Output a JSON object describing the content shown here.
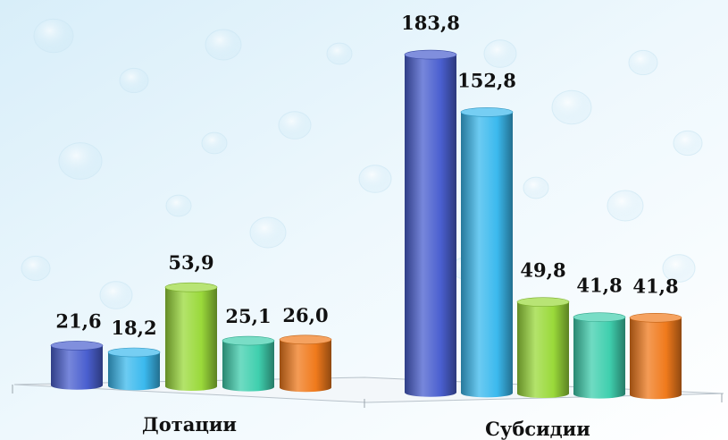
{
  "chart_data": {
    "type": "bar",
    "categories": [
      "Дотации",
      "Субсидии"
    ],
    "series": [
      {
        "values": [
          21.6,
          183.8
        ],
        "labels": [
          "21,6",
          "183,8"
        ],
        "color": "#4a5fcf"
      },
      {
        "values": [
          18.2,
          152.8
        ],
        "labels": [
          "18,2",
          "152,8"
        ],
        "color": "#3bb9ee"
      },
      {
        "values": [
          53.9,
          49.8
        ],
        "labels": [
          "53,9",
          "49,8"
        ],
        "color": "#9ad93a"
      },
      {
        "values": [
          25.1,
          41.8
        ],
        "labels": [
          "25,1",
          "41,8"
        ],
        "color": "#3fcfae"
      },
      {
        "values": [
          26.0,
          41.8
        ],
        "labels": [
          "26,0",
          "41,8"
        ],
        "color": "#f07a1c"
      }
    ],
    "title": "",
    "xlabel": "",
    "ylabel": "",
    "ylim": [
      0,
      200
    ],
    "grid": false,
    "legend": "none"
  }
}
